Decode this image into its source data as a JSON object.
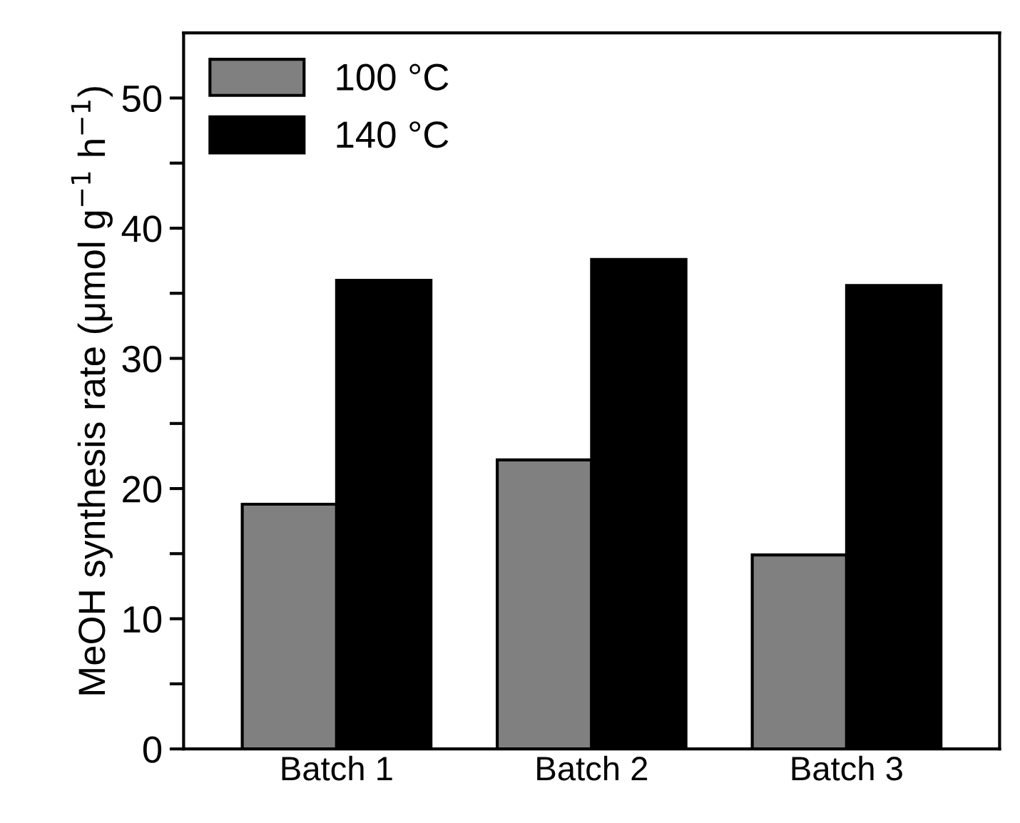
{
  "chart_data": {
    "type": "bar",
    "ylabel": "MeOH synthesis rate (μmol g$^{−1}$ h$^{−1}$)",
    "categories": [
      "Batch 1",
      "Batch 2",
      "Batch 3"
    ],
    "series": [
      {
        "name": "100 °C",
        "color": "#808080",
        "values": [
          18.8,
          22.2,
          14.9
        ]
      },
      {
        "name": "140 °C",
        "color": "#000000",
        "values": [
          36.0,
          37.6,
          35.6
        ]
      }
    ],
    "ylim": [
      0,
      55
    ],
    "yticks": [
      0,
      {
        "value": 5,
        "label": null
      },
      10,
      {
        "value": 15,
        "label": null
      },
      20,
      {
        "value": 25,
        "label": null
      },
      30,
      {
        "value": 35,
        "label": null
      },
      40,
      {
        "value": 45,
        "label": null
      },
      50
    ],
    "grid": false,
    "legend": "top left"
  }
}
